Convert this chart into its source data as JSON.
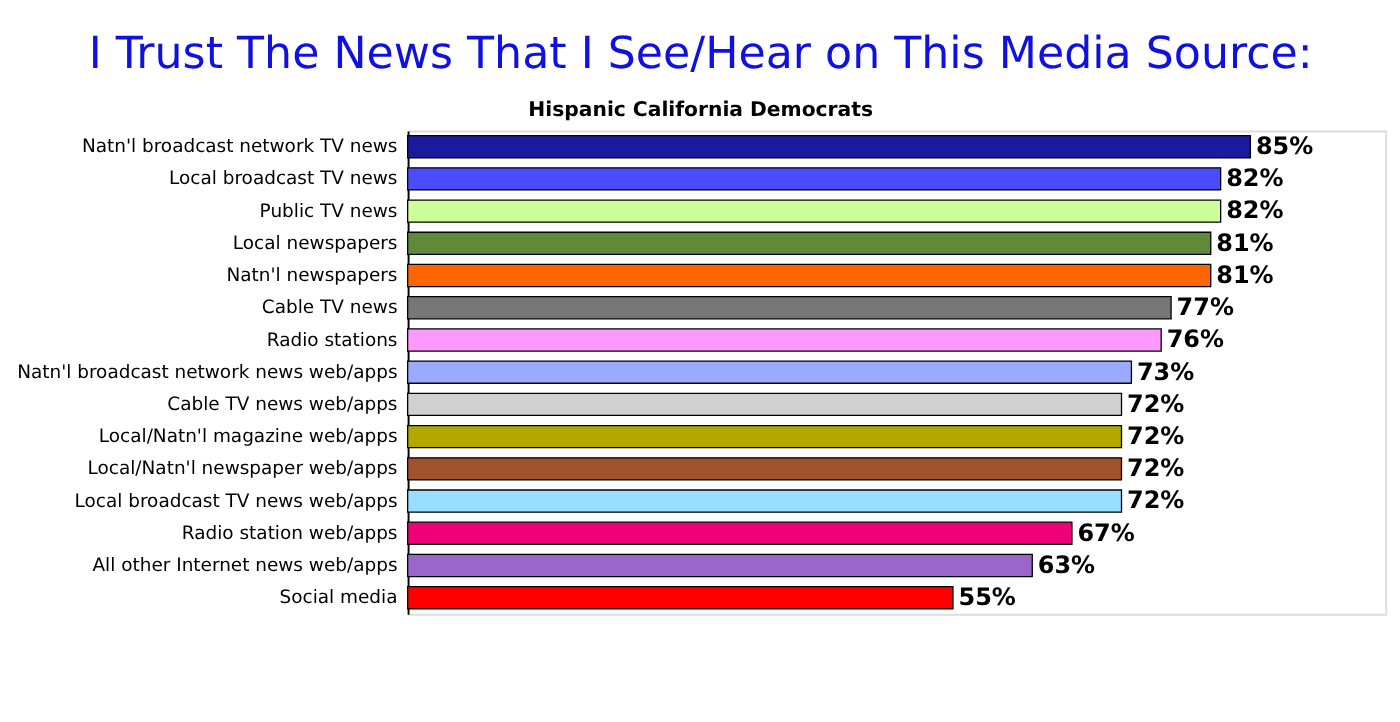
{
  "chart_data": {
    "type": "bar",
    "orientation": "horizontal",
    "title": "I Trust The News That I See/Hear on This Media Source:",
    "subtitle": "Hispanic California Democrats",
    "categories": [
      "Natn'l broadcast network TV news",
      "Local broadcast TV news",
      "Public TV news",
      "Local newspapers",
      "Natn'l newspapers",
      "Cable TV news",
      "Radio stations",
      "Natn'l broadcast network news web/apps",
      "Cable TV news web/apps",
      "Local/Natn'l magazine web/apps",
      "Local/Natn'l newspaper web/apps",
      "Local broadcast TV news web/apps",
      "Radio station web/apps",
      "All other Internet news web/apps",
      "Social media"
    ],
    "values": [
      85,
      82,
      82,
      81,
      81,
      77,
      76,
      73,
      72,
      72,
      72,
      72,
      67,
      63,
      55
    ],
    "value_labels": [
      "85%",
      "82%",
      "82%",
      "81%",
      "81%",
      "77%",
      "76%",
      "73%",
      "72%",
      "72%",
      "72%",
      "72%",
      "67%",
      "63%",
      "55%"
    ],
    "colors": [
      "#1a1a9c",
      "#4b4bff",
      "#ccff99",
      "#5f8a3a",
      "#ff6600",
      "#777777",
      "#ff99ff",
      "#99aaff",
      "#d0d0d0",
      "#b3a800",
      "#a0522d",
      "#99ddff",
      "#ee0077",
      "#9966cc",
      "#ff0000"
    ]
  }
}
